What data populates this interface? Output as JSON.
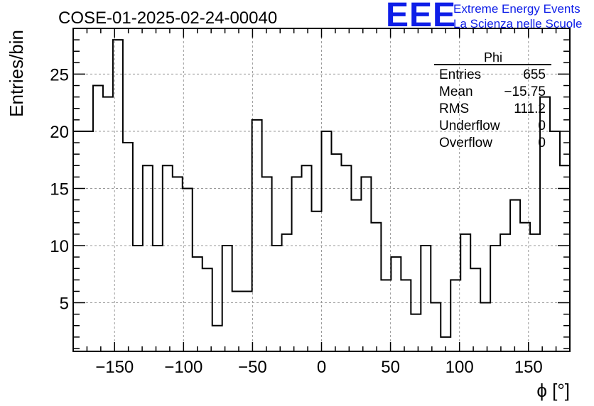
{
  "run_label": "COSE-01-2025-02-24-00040",
  "logo": {
    "text": "EEE",
    "line1": "Extreme Energy Events",
    "line2": "La Scienza nelle Scuole",
    "color": "#0e1ee8"
  },
  "chart_data": {
    "type": "histogram",
    "title": "COSE-01-2025-02-24-00040",
    "xlabel": "ϕ [°]",
    "ylabel": "Entries/bin",
    "xlim": [
      -180,
      180
    ],
    "ylim": [
      0.75,
      29
    ],
    "grid": true,
    "bin_width": 7.2,
    "bin_edges_start": -180,
    "x_ticks": [
      -150,
      -100,
      -50,
      0,
      50,
      100,
      150
    ],
    "x_tick_labels": [
      "−150",
      "−100",
      "−50",
      "0",
      "50",
      "100",
      "150"
    ],
    "y_ticks": [
      5,
      10,
      15,
      20,
      25
    ],
    "y_tick_labels": [
      "5",
      "10",
      "15",
      "20",
      "25"
    ],
    "values": [
      20,
      20,
      24,
      23,
      28,
      19,
      10,
      17,
      10,
      17,
      16,
      15,
      9,
      8,
      3,
      10,
      6,
      6,
      21,
      16,
      10,
      11,
      16,
      17,
      13,
      20,
      18,
      17,
      14,
      16,
      12,
      7,
      9,
      7,
      4,
      10,
      5,
      2,
      7,
      11,
      8,
      5,
      10,
      11,
      14,
      12,
      11,
      23,
      20,
      17
    ],
    "line_color": "#000000",
    "stats_box": {
      "name": "Phi",
      "placement": "top-right",
      "rows": [
        {
          "label": "Entries",
          "value": "655"
        },
        {
          "label": "Mean",
          "value": "−15.75"
        },
        {
          "label": "RMS",
          "value": "111.2"
        },
        {
          "label": "Underflow",
          "value": "0"
        },
        {
          "label": "Overflow",
          "value": "0"
        }
      ]
    }
  }
}
